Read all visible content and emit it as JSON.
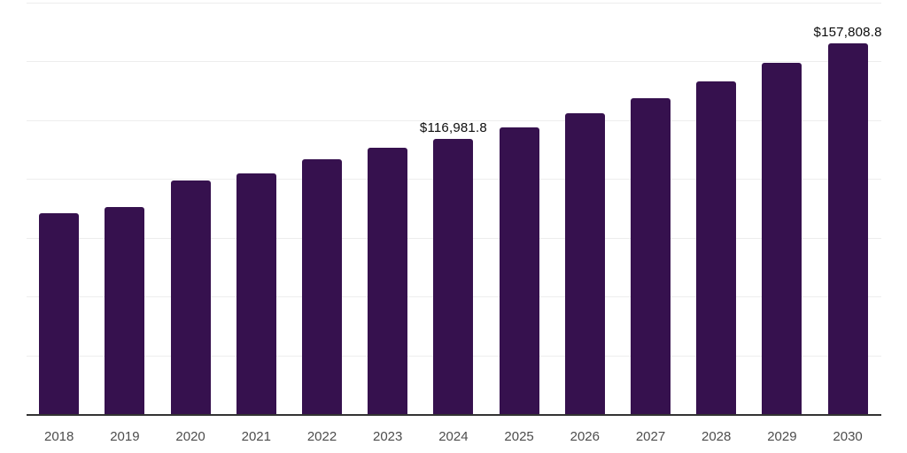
{
  "chart_data": {
    "type": "bar",
    "title": "",
    "xlabel": "",
    "ylabel": "",
    "categories": [
      "2018",
      "2019",
      "2020",
      "2021",
      "2022",
      "2023",
      "2024",
      "2025",
      "2026",
      "2027",
      "2028",
      "2029",
      "2030"
    ],
    "values": [
      85600,
      87900,
      99200,
      102200,
      108500,
      113300,
      116981.8,
      122100,
      128000,
      134300,
      141600,
      149500,
      157808.8
    ],
    "data_labels": [
      {
        "category": "2024",
        "text": "$116,981.8"
      },
      {
        "category": "2030",
        "text": "$157,808.8"
      }
    ],
    "ylim": [
      0,
      175000
    ],
    "gridline_step": 25000,
    "grid": "horizontal",
    "legend": "none",
    "y_tick_labels_visible": false,
    "colors": {
      "bar": "#36114E",
      "axis_line": "#333333",
      "gridline": "#ededed",
      "x_tick_label": "#4d4d4d",
      "data_label": "#0d0d0d",
      "background": "#ffffff"
    }
  }
}
